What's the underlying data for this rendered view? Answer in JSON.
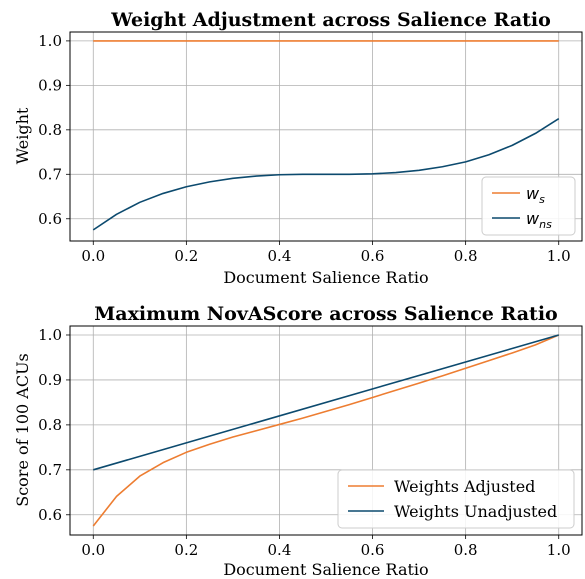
{
  "chart_data": [
    {
      "type": "line",
      "title": "Weight Adjustment across Salience Ratio",
      "xlabel": "Document Salience Ratio",
      "ylabel": "Weight",
      "xlim": [
        -0.05,
        1.05
      ],
      "ylim": [
        0.55,
        1.02
      ],
      "xticks": [
        "0.0",
        "0.2",
        "0.4",
        "0.6",
        "0.8",
        "1.0"
      ],
      "yticks": [
        "0.6",
        "0.7",
        "0.8",
        "0.9",
        "1.0"
      ],
      "grid": true,
      "legend_position": "lower-right",
      "series": [
        {
          "name": "w_s",
          "label_main": "w",
          "label_sub": "s",
          "color": "#ed7d31",
          "x": [
            0.0,
            0.1,
            0.2,
            0.3,
            0.4,
            0.5,
            0.6,
            0.7,
            0.8,
            0.9,
            1.0
          ],
          "y": [
            1.0,
            1.0,
            1.0,
            1.0,
            1.0,
            1.0,
            1.0,
            1.0,
            1.0,
            1.0,
            1.0
          ]
        },
        {
          "name": "w_ns",
          "label_main": "w",
          "label_sub": "ns",
          "color": "#0c4a6e",
          "x": [
            0.0,
            0.05,
            0.1,
            0.15,
            0.2,
            0.25,
            0.3,
            0.35,
            0.4,
            0.45,
            0.5,
            0.55,
            0.6,
            0.65,
            0.7,
            0.75,
            0.8,
            0.85,
            0.9,
            0.95,
            1.0
          ],
          "y": [
            0.575,
            0.61,
            0.637,
            0.657,
            0.672,
            0.683,
            0.691,
            0.696,
            0.699,
            0.7,
            0.7,
            0.7,
            0.701,
            0.704,
            0.709,
            0.717,
            0.728,
            0.744,
            0.765,
            0.792,
            0.825
          ]
        }
      ]
    },
    {
      "type": "line",
      "title": "Maximum NovAScore across Salience Ratio",
      "xlabel": "Document Salience Ratio",
      "ylabel": "Score of 100 ACUs",
      "xlim": [
        -0.05,
        1.05
      ],
      "ylim": [
        0.555,
        1.02
      ],
      "xticks": [
        "0.0",
        "0.2",
        "0.4",
        "0.6",
        "0.8",
        "1.0"
      ],
      "yticks": [
        "0.6",
        "0.7",
        "0.8",
        "0.9",
        "1.0"
      ],
      "grid": true,
      "legend_position": "lower-right",
      "series": [
        {
          "name": "Weights Adjusted",
          "color": "#ed7d31",
          "x": [
            0.0,
            0.05,
            0.1,
            0.15,
            0.2,
            0.25,
            0.3,
            0.35,
            0.4,
            0.45,
            0.5,
            0.55,
            0.6,
            0.65,
            0.7,
            0.75,
            0.8,
            0.85,
            0.9,
            0.95,
            1.0
          ],
          "y": [
            0.575,
            0.641,
            0.686,
            0.716,
            0.739,
            0.757,
            0.773,
            0.787,
            0.801,
            0.815,
            0.83,
            0.845,
            0.861,
            0.877,
            0.893,
            0.909,
            0.926,
            0.943,
            0.96,
            0.978,
            1.0
          ]
        },
        {
          "name": "Weights Unadjusted",
          "color": "#0c4a6e",
          "x": [
            0.0,
            1.0
          ],
          "y": [
            0.7,
            1.0
          ]
        }
      ]
    }
  ]
}
